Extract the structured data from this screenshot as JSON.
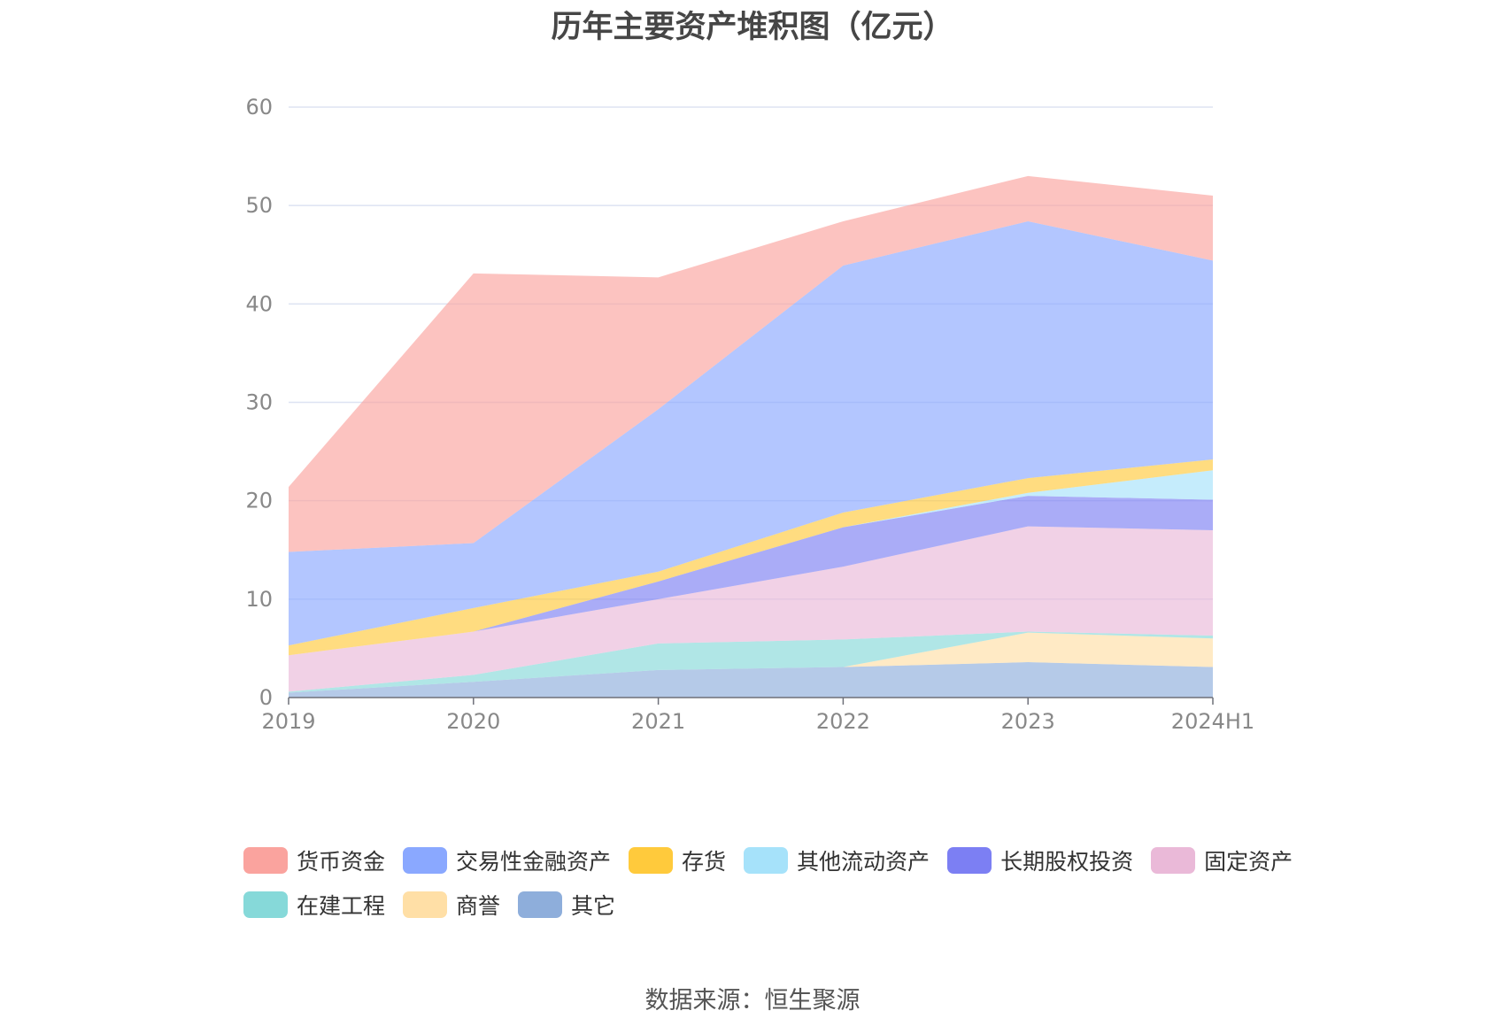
{
  "title": "历年主要资产堆积图（亿元）",
  "source": "数据来源：恒生聚源",
  "chart_data": {
    "type": "area",
    "stacked": true,
    "categories": [
      "2019",
      "2020",
      "2021",
      "2022",
      "2023",
      "2024H1"
    ],
    "y_ticks": [
      "0",
      "10",
      "20",
      "30",
      "40",
      "50",
      "60"
    ],
    "ylim": [
      0,
      60
    ],
    "grid": true,
    "legend_position": "bottom",
    "series": [
      {
        "name": "其它",
        "color": "#8eaedb",
        "values": [
          0.5,
          1.6,
          2.8,
          3.1,
          3.6,
          3.1
        ]
      },
      {
        "name": "商誉",
        "color": "#ffdfa6",
        "values": [
          0,
          0,
          0,
          0,
          3.0,
          2.9
        ]
      },
      {
        "name": "在建工程",
        "color": "#86d9d9",
        "values": [
          0.1,
          0.7,
          2.7,
          2.8,
          0.1,
          0.3
        ]
      },
      {
        "name": "固定资产",
        "color": "#eab9d8",
        "values": [
          3.7,
          4.4,
          4.5,
          7.4,
          10.7,
          10.7
        ]
      },
      {
        "name": "长期股权投资",
        "color": "#7c7ff3",
        "values": [
          0,
          0,
          1.8,
          4.0,
          3.1,
          3.1
        ]
      },
      {
        "name": "其他流动资产",
        "color": "#a6e2fa",
        "values": [
          0,
          0,
          0,
          0,
          0.3,
          3.0
        ]
      },
      {
        "name": "存货",
        "color": "#ffca3c",
        "values": [
          1.0,
          2.4,
          1.0,
          1.5,
          1.5,
          1.1
        ]
      },
      {
        "name": "交易性金融资产",
        "color": "#8aa8ff",
        "values": [
          9.5,
          6.6,
          16.5,
          25.1,
          26.1,
          20.2
        ]
      },
      {
        "name": "货币资金",
        "color": "#faa39e",
        "values": [
          6.6,
          27.4,
          13.4,
          4.5,
          4.6,
          6.6
        ]
      }
    ]
  },
  "legend": [
    {
      "label": "货币资金",
      "color": "#faa39e"
    },
    {
      "label": "交易性金融资产",
      "color": "#8aa8ff"
    },
    {
      "label": "存货",
      "color": "#ffca3c"
    },
    {
      "label": "其他流动资产",
      "color": "#a6e2fa"
    },
    {
      "label": "长期股权投资",
      "color": "#7c7ff3"
    },
    {
      "label": "固定资产",
      "color": "#eab9d8"
    },
    {
      "label": "在建工程",
      "color": "#86d9d9"
    },
    {
      "label": "商誉",
      "color": "#ffdfa6"
    },
    {
      "label": "其它",
      "color": "#8eaedb"
    }
  ]
}
